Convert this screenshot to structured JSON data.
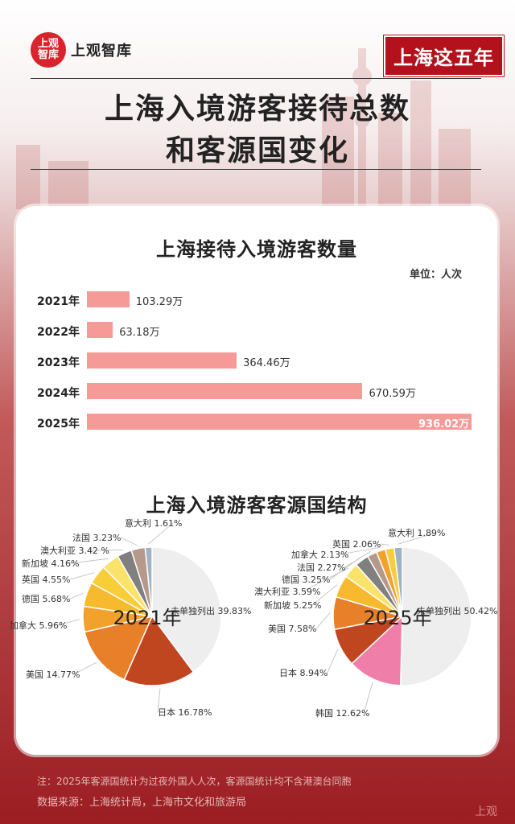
{
  "brand": {
    "badge_line1": "上观",
    "badge_line2": "智库",
    "name": "上观智库"
  },
  "series_tag": "上海这五年",
  "title_line1": "上海入境游客接待总数",
  "title_line2": "和客源国变化",
  "chart_data": [
    {
      "type": "bar",
      "title": "上海接待入境游客数量",
      "unit": "单位：人次",
      "categories": [
        "2021年",
        "2022年",
        "2023年",
        "2024年",
        "2025年"
      ],
      "values": [
        103.29,
        63.18,
        364.46,
        670.59,
        936.02
      ],
      "value_labels": [
        "103.29万",
        "63.18万",
        "364.46万",
        "670.59万",
        "936.02万"
      ],
      "color": "#f59a97"
    },
    {
      "type": "pie",
      "title": "上海入境游客客源国结构",
      "center_label": "2021年",
      "slices": [
        {
          "name": "未单独列出",
          "value": 39.83,
          "label": "未单独列出 39.83%",
          "color": "#eeeeee"
        },
        {
          "name": "日本",
          "value": 16.78,
          "label": "日本 16.78%",
          "color": "#c0461f"
        },
        {
          "name": "美国",
          "value": 14.77,
          "label": "美国 14.77%",
          "color": "#e8802a"
        },
        {
          "name": "加拿大",
          "value": 5.96,
          "label": "加拿大 5.96%",
          "color": "#f2a12c"
        },
        {
          "name": "德国",
          "value": 5.68,
          "label": "德国  5.68%",
          "color": "#f7b92e"
        },
        {
          "name": "英国",
          "value": 4.55,
          "label": "英国  4.55%",
          "color": "#f8cd3a"
        },
        {
          "name": "新加坡",
          "value": 4.16,
          "label": "新加坡 4.16%",
          "color": "#fae36a"
        },
        {
          "name": "澳大利亚",
          "value": 3.42,
          "label": "澳大利亚 3.42 %",
          "color": "#808080"
        },
        {
          "name": "法国",
          "value": 3.23,
          "label": "法国  3.23%",
          "color": "#b59a8c"
        },
        {
          "name": "意大利",
          "value": 1.61,
          "label": "意大利  1.61%",
          "color": "#9fb3c2"
        }
      ]
    },
    {
      "type": "pie",
      "title": "",
      "center_label": "2025年",
      "slices": [
        {
          "name": "未单独列出",
          "value": 50.42,
          "label": "未单独列出 50.42%",
          "color": "#eeeeee"
        },
        {
          "name": "韩国",
          "value": 12.62,
          "label": "韩国  12.62%",
          "color": "#ef7fa8"
        },
        {
          "name": "日本",
          "value": 8.94,
          "label": "日本  8.94%",
          "color": "#c0461f"
        },
        {
          "name": "美国",
          "value": 7.58,
          "label": "美国 7.58%",
          "color": "#e8802a"
        },
        {
          "name": "新加坡",
          "value": 5.25,
          "label": "新加坡 5.25%",
          "color": "#f7b92e"
        },
        {
          "name": "澳大利亚",
          "value": 3.59,
          "label": "澳大利亚  3.59%",
          "color": "#fae36a"
        },
        {
          "name": "德国",
          "value": 3.25,
          "label": "德国  3.25%",
          "color": "#808080"
        },
        {
          "name": "法国",
          "value": 2.27,
          "label": "法国  2.27%",
          "color": "#b59a8c"
        },
        {
          "name": "加拿大",
          "value": 2.13,
          "label": "加拿大  2.13%",
          "color": "#f2a12c"
        },
        {
          "name": "英国",
          "value": 2.06,
          "label": "英国  2.06%",
          "color": "#f8cd3a"
        },
        {
          "name": "意大利",
          "value": 1.89,
          "label": "意大利  1.89%",
          "color": "#9fb3c2"
        }
      ]
    }
  ],
  "footer": {
    "note": "注：2025年客源国统计为过夜外国人人次，客源国统计均不含港澳台同胞",
    "source": "数据来源：上海统计局，上海市文化和旅游局"
  },
  "watermark": "上观"
}
